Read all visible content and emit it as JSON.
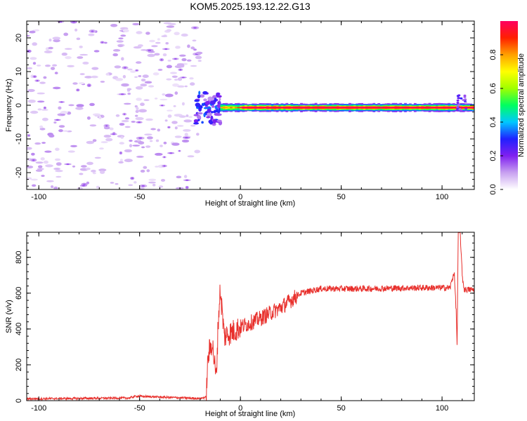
{
  "figure": {
    "title": "KOM5.2025.193.12.22.G13"
  },
  "chart_data": [
    {
      "type": "heatmap",
      "title": "KOM5.2025.193.12.22.G13",
      "xlabel": "Height of straight line (km)",
      "ylabel": "Frequency (Hz)",
      "xlim": [
        -106,
        116
      ],
      "ylim": [
        -25,
        25
      ],
      "xticks": [
        -100,
        -50,
        0,
        50,
        100
      ],
      "yticks": [
        -20,
        -10,
        0,
        10,
        20
      ],
      "colorbar": {
        "label": "Normalized spectral amplitude",
        "range": [
          0,
          1
        ],
        "ticks": [
          0.0,
          0.2,
          0.4,
          0.6,
          0.8
        ],
        "colors": [
          "#ffffff",
          "#c8a0f0",
          "#8020f0",
          "#2020ff",
          "#00c8ff",
          "#00ff60",
          "#a0ff00",
          "#ffff00",
          "#ffa000",
          "#ff2000",
          "#ff0060"
        ]
      },
      "features": [
        {
          "name": "noise",
          "x_range": [
            -106,
            -20
          ],
          "freq_range": [
            -25,
            25
          ],
          "amplitude": [
            0.03,
            0.12
          ]
        },
        {
          "name": "transition",
          "x_range": [
            -22,
            -10
          ],
          "freq_range": [
            -6,
            4
          ],
          "amplitude": [
            0.1,
            0.35
          ]
        },
        {
          "name": "main_band",
          "x_range": [
            -10,
            116
          ],
          "center_freq": -0.7,
          "halfwidth_hz": 1.2,
          "peak_amplitude": 1.0
        },
        {
          "name": "spike",
          "x_range": [
            107,
            112
          ],
          "freq_range": [
            -2,
            3
          ],
          "amplitude": [
            0.1,
            0.3
          ]
        }
      ]
    },
    {
      "type": "line",
      "xlabel": "Height of straight line (km)",
      "ylabel": "SNR (v/v)",
      "xlim": [
        -106,
        116
      ],
      "ylim": [
        0,
        940
      ],
      "xticks": [
        -100,
        -50,
        0,
        50,
        100
      ],
      "yticks": [
        0,
        200,
        400,
        600,
        800
      ],
      "color": "#e8302c",
      "keypoints": [
        {
          "x": -106,
          "y": 10
        },
        {
          "x": -55,
          "y": 15
        },
        {
          "x": -52,
          "y": 25
        },
        {
          "x": -20,
          "y": 12
        },
        {
          "x": -17,
          "y": 20
        },
        {
          "x": -16,
          "y": 250
        },
        {
          "x": -14,
          "y": 330
        },
        {
          "x": -12,
          "y": 120
        },
        {
          "x": -11,
          "y": 440
        },
        {
          "x": -10,
          "y": 620
        },
        {
          "x": -8,
          "y": 360
        },
        {
          "x": 0,
          "y": 410
        },
        {
          "x": 10,
          "y": 460
        },
        {
          "x": 20,
          "y": 520
        },
        {
          "x": 30,
          "y": 600
        },
        {
          "x": 40,
          "y": 625
        },
        {
          "x": 60,
          "y": 625
        },
        {
          "x": 90,
          "y": 630
        },
        {
          "x": 104,
          "y": 630
        },
        {
          "x": 106,
          "y": 720
        },
        {
          "x": 107,
          "y": 500
        },
        {
          "x": 107.5,
          "y": 300
        },
        {
          "x": 108,
          "y": 940
        },
        {
          "x": 109,
          "y": 940
        },
        {
          "x": 110,
          "y": 700
        },
        {
          "x": 111,
          "y": 620
        },
        {
          "x": 116,
          "y": 620
        }
      ]
    }
  ]
}
